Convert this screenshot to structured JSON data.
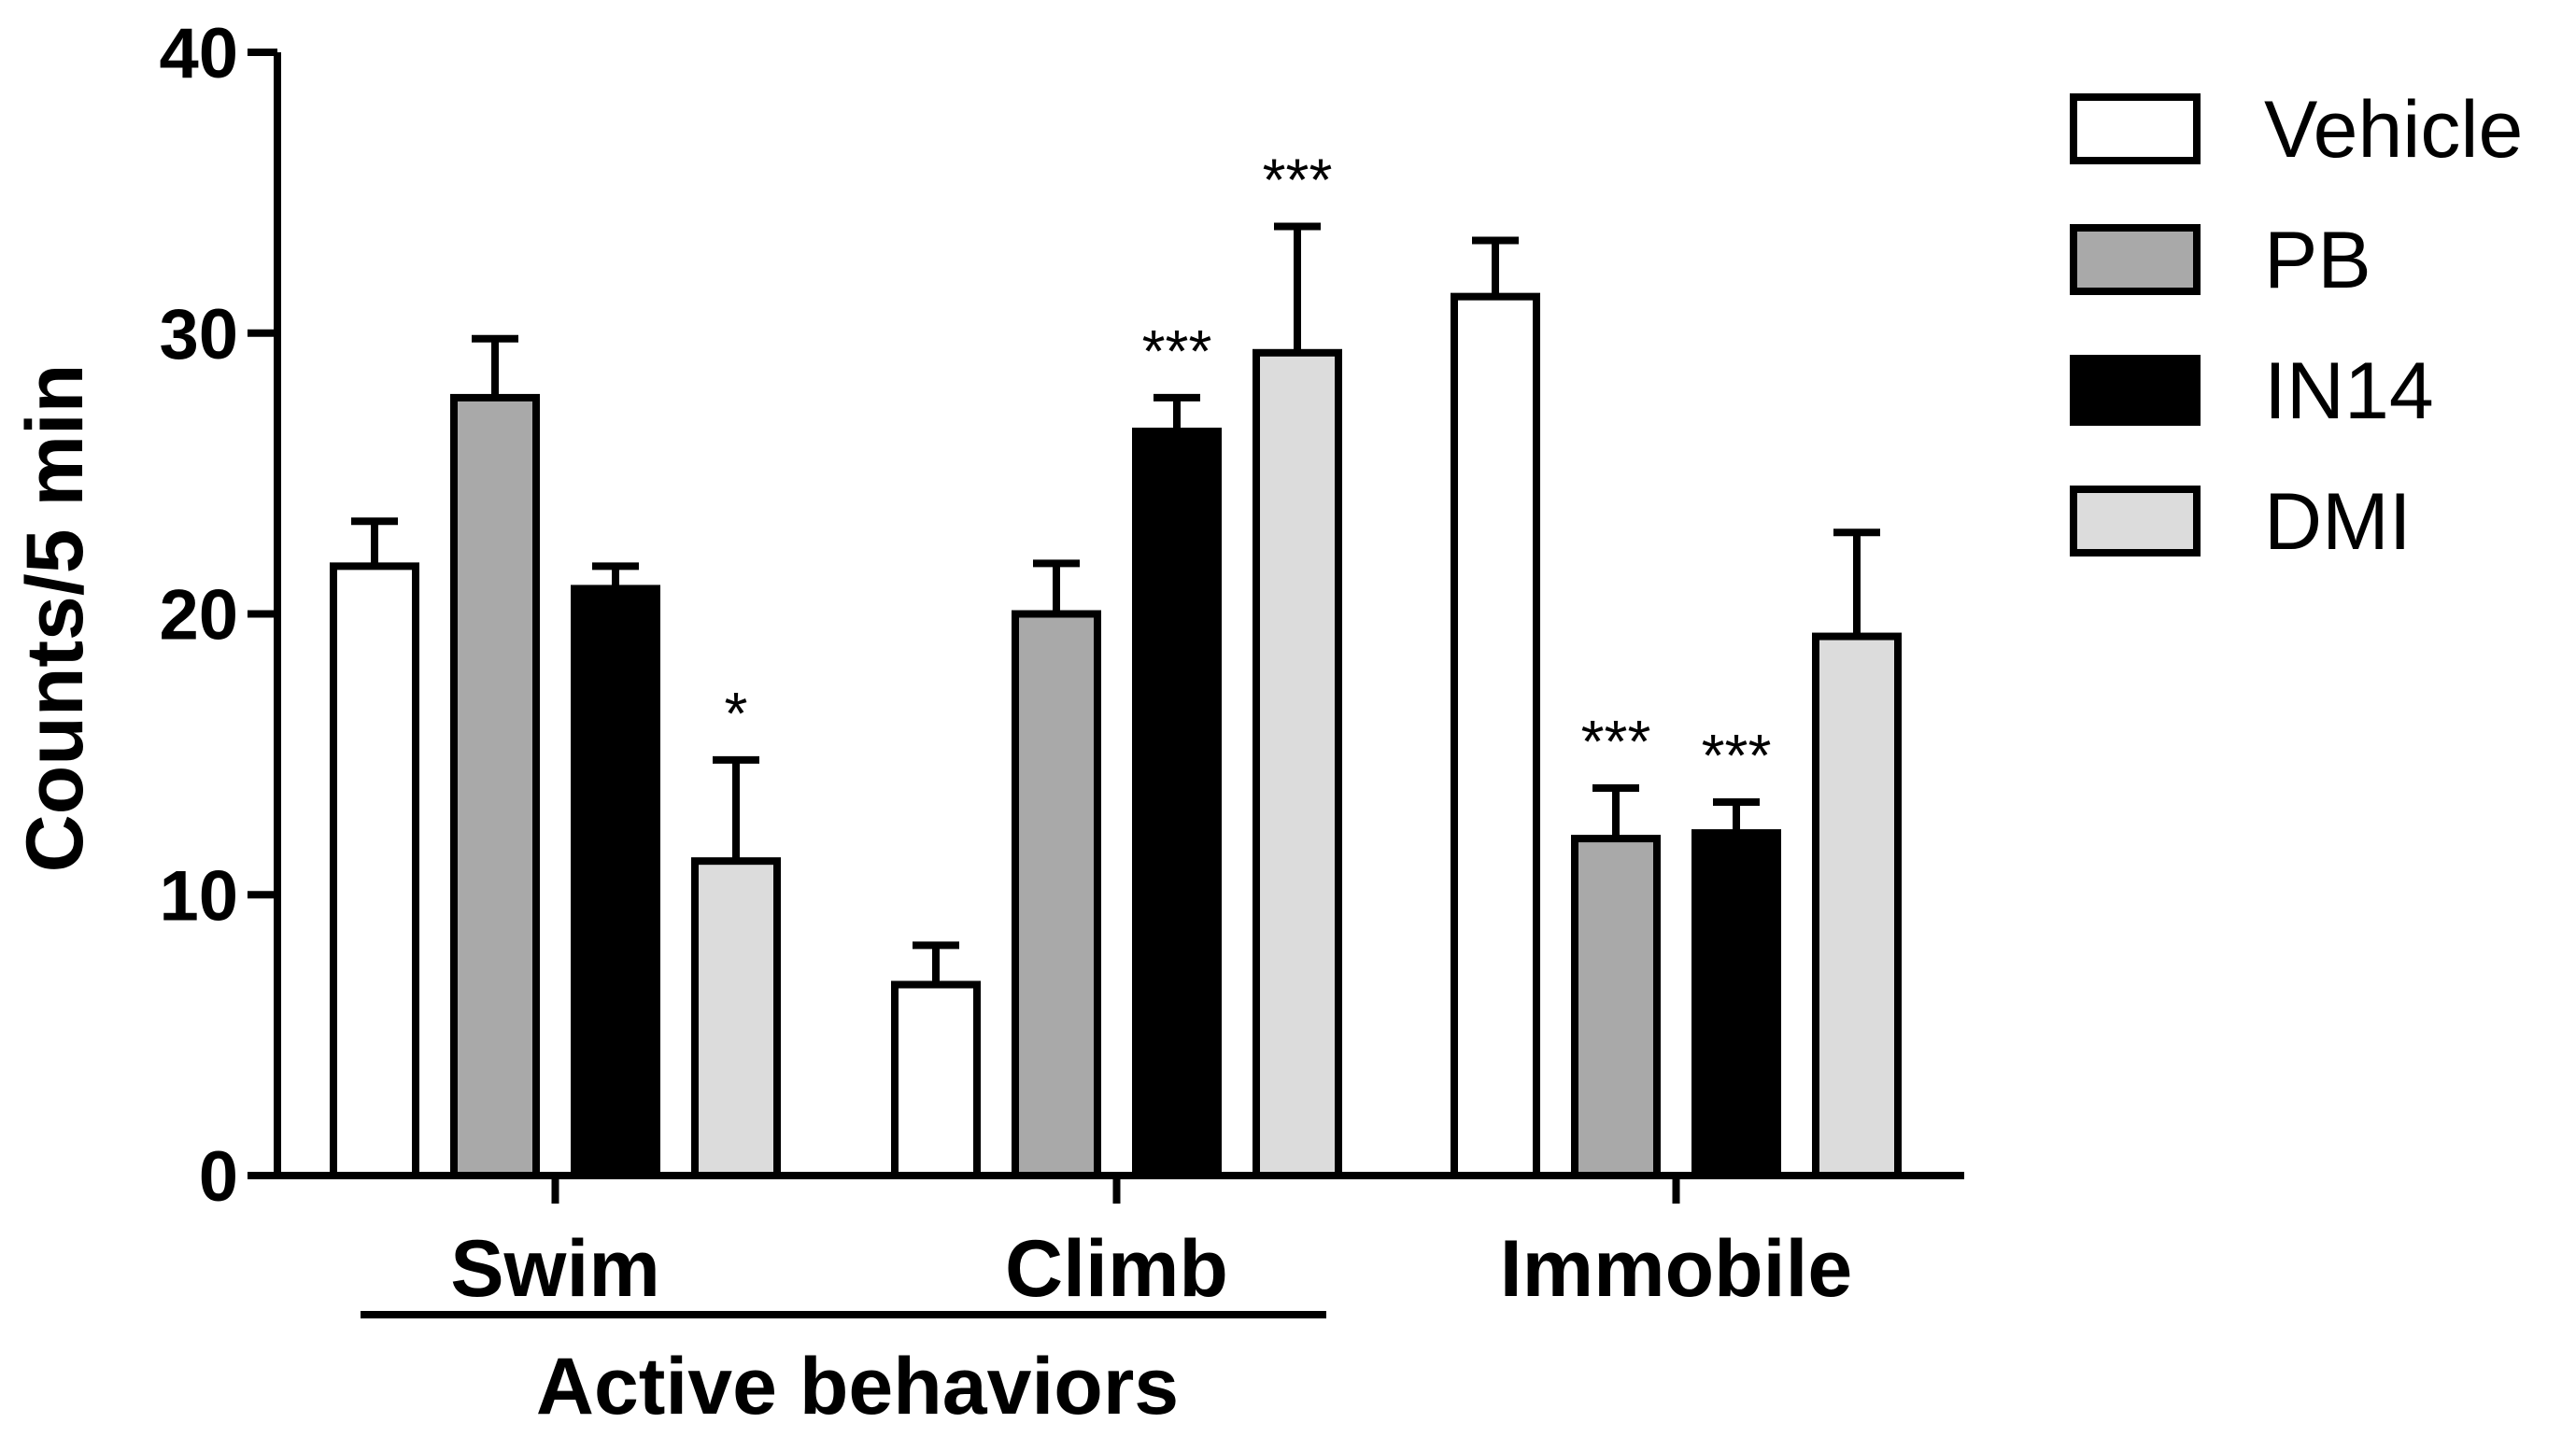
{
  "chart_data": {
    "type": "bar",
    "title": "",
    "xlabel": "",
    "ylabel": "Counts/5 min",
    "ylim": [
      0,
      40
    ],
    "yticks": [
      0,
      10,
      20,
      30,
      40
    ],
    "grid": false,
    "legend_position": "top-right",
    "categories": [
      "Swim",
      "Climb",
      "Immobile"
    ],
    "category_group": {
      "label": "Active behaviors",
      "spans": [
        "Swim",
        "Climb"
      ]
    },
    "series": [
      {
        "name": "Vehicle",
        "color": "#ffffff",
        "values": [
          21.7,
          6.8,
          31.3
        ],
        "errors": [
          1.6,
          1.4,
          2.0
        ],
        "significance": [
          "",
          "",
          ""
        ]
      },
      {
        "name": "PB",
        "color": "#a9a9a9",
        "values": [
          27.7,
          20.0,
          12.0
        ],
        "errors": [
          2.1,
          1.8,
          1.8
        ],
        "significance": [
          "",
          "",
          "***"
        ]
      },
      {
        "name": "IN14",
        "color": "#000000",
        "values": [
          20.9,
          26.5,
          12.2
        ],
        "errors": [
          0.8,
          1.2,
          1.1
        ],
        "significance": [
          "",
          "***",
          "***"
        ]
      },
      {
        "name": "DMI",
        "color": "#dcdcdc",
        "values": [
          11.2,
          29.3,
          19.2
        ],
        "errors": [
          3.6,
          4.5,
          3.7
        ],
        "significance": [
          "*",
          "***",
          ""
        ]
      }
    ]
  }
}
